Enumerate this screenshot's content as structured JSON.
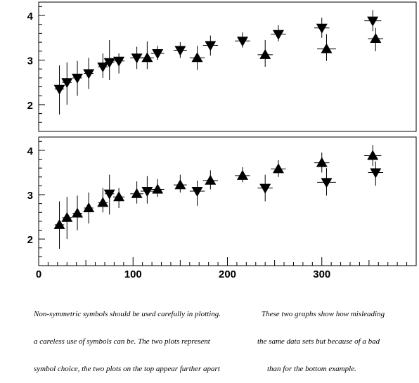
{
  "chart_data": [
    {
      "type": "scatter",
      "xlim": [
        0,
        400
      ],
      "ylim": [
        1.4,
        4.3
      ],
      "ytick_labels": [
        "2",
        "3",
        "4"
      ],
      "series": [
        {
          "marker": "triangle-down",
          "points": [
            {
              "x": 22,
              "y": 2.35,
              "xerr": 5,
              "ylo": 1.78,
              "yhi": 2.88
            },
            {
              "x": 30,
              "y": 2.5,
              "xerr": 5,
              "ylo": 2.0,
              "yhi": 2.95
            },
            {
              "x": 41,
              "y": 2.6,
              "xerr": 5,
              "ylo": 2.2,
              "yhi": 2.98
            },
            {
              "x": 53,
              "y": 2.7,
              "xerr": 5,
              "ylo": 2.35,
              "yhi": 3.05
            },
            {
              "x": 68,
              "y": 2.85,
              "xerr": 5,
              "ylo": 2.6,
              "yhi": 3.15
            },
            {
              "x": 75,
              "y": 2.95,
              "xerr": 5,
              "ylo": 2.55,
              "yhi": 3.45
            },
            {
              "x": 85,
              "y": 2.98,
              "xerr": 6,
              "ylo": 2.7,
              "yhi": 3.15
            },
            {
              "x": 104,
              "y": 3.05,
              "xerr": 7,
              "ylo": 2.8,
              "yhi": 3.3
            },
            {
              "x": 126,
              "y": 3.15,
              "xerr": 7,
              "ylo": 3.0,
              "yhi": 3.32
            },
            {
              "x": 150,
              "y": 3.22,
              "xerr": 7,
              "ylo": 3.05,
              "yhi": 3.4
            },
            {
              "x": 182,
              "y": 3.33,
              "xerr": 8,
              "ylo": 3.1,
              "yhi": 3.55
            },
            {
              "x": 216,
              "y": 3.43,
              "xerr": 8,
              "ylo": 3.28,
              "yhi": 3.62
            },
            {
              "x": 254,
              "y": 3.58,
              "xerr": 8,
              "ylo": 3.42,
              "yhi": 3.78
            },
            {
              "x": 300,
              "y": 3.72,
              "xerr": 8,
              "ylo": 3.5,
              "yhi": 3.95
            },
            {
              "x": 354,
              "y": 3.88,
              "xerr": 9,
              "ylo": 3.65,
              "yhi": 4.12
            }
          ]
        },
        {
          "marker": "triangle-up",
          "points": [
            {
              "x": 115,
              "y": 3.05,
              "xerr": 7,
              "ylo": 2.8,
              "yhi": 3.42
            },
            {
              "x": 168,
              "y": 3.05,
              "xerr": 8,
              "ylo": 2.78,
              "yhi": 3.32
            },
            {
              "x": 240,
              "y": 3.12,
              "xerr": 8,
              "ylo": 2.85,
              "yhi": 3.45
            },
            {
              "x": 305,
              "y": 3.25,
              "xerr": 10,
              "ylo": 2.98,
              "yhi": 3.58
            },
            {
              "x": 357,
              "y": 3.48,
              "xerr": 8,
              "ylo": 3.2,
              "yhi": 3.72
            }
          ]
        }
      ]
    },
    {
      "type": "scatter",
      "xlim": [
        0,
        400
      ],
      "ylim": [
        1.4,
        4.3
      ],
      "xlabel": "",
      "xtick_labels": [
        "0",
        "100",
        "200",
        "300"
      ],
      "ytick_labels": [
        "2",
        "3",
        "4"
      ],
      "series": [
        {
          "marker": "triangle-up",
          "points": [
            {
              "x": 22,
              "y": 2.32,
              "xerr": 5,
              "ylo": 1.78,
              "yhi": 2.85
            },
            {
              "x": 30,
              "y": 2.48,
              "xerr": 5,
              "ylo": 2.0,
              "yhi": 2.95
            },
            {
              "x": 41,
              "y": 2.58,
              "xerr": 5,
              "ylo": 2.2,
              "yhi": 2.98
            },
            {
              "x": 53,
              "y": 2.7,
              "xerr": 5,
              "ylo": 2.35,
              "yhi": 3.05
            },
            {
              "x": 68,
              "y": 2.82,
              "xerr": 5,
              "ylo": 2.6,
              "yhi": 3.15
            },
            {
              "x": 85,
              "y": 2.95,
              "xerr": 6,
              "ylo": 2.7,
              "yhi": 3.15
            },
            {
              "x": 104,
              "y": 3.02,
              "xerr": 7,
              "ylo": 2.8,
              "yhi": 3.3
            },
            {
              "x": 126,
              "y": 3.12,
              "xerr": 7,
              "ylo": 2.95,
              "yhi": 3.35
            },
            {
              "x": 150,
              "y": 3.22,
              "xerr": 7,
              "ylo": 3.05,
              "yhi": 3.45
            },
            {
              "x": 182,
              "y": 3.32,
              "xerr": 8,
              "ylo": 3.12,
              "yhi": 3.55
            },
            {
              "x": 216,
              "y": 3.43,
              "xerr": 8,
              "ylo": 3.28,
              "yhi": 3.62
            },
            {
              "x": 254,
              "y": 3.58,
              "xerr": 8,
              "ylo": 3.4,
              "yhi": 3.78
            },
            {
              "x": 300,
              "y": 3.72,
              "xerr": 8,
              "ylo": 3.5,
              "yhi": 3.95
            },
            {
              "x": 354,
              "y": 3.88,
              "xerr": 9,
              "ylo": 3.65,
              "yhi": 4.12
            }
          ]
        },
        {
          "marker": "triangle-down",
          "points": [
            {
              "x": 75,
              "y": 3.02,
              "xerr": 5,
              "ylo": 2.55,
              "yhi": 3.45
            },
            {
              "x": 115,
              "y": 3.08,
              "xerr": 7,
              "ylo": 2.8,
              "yhi": 3.42
            },
            {
              "x": 168,
              "y": 3.08,
              "xerr": 8,
              "ylo": 2.75,
              "yhi": 3.32
            },
            {
              "x": 240,
              "y": 3.15,
              "xerr": 8,
              "ylo": 2.85,
              "yhi": 3.45
            },
            {
              "x": 305,
              "y": 3.28,
              "xerr": 10,
              "ylo": 2.98,
              "yhi": 3.6
            },
            {
              "x": 357,
              "y": 3.5,
              "xerr": 8,
              "ylo": 3.2,
              "yhi": 3.75
            }
          ]
        }
      ]
    }
  ],
  "caption": {
    "left": [
      "Non-symmetric symbols should be used carefully in plotting.",
      "a careless use of symbols can be. The two plots represent",
      "symbol choice, the two plots on the top appear further apart"
    ],
    "right": [
      "These two graphs show how misleading",
      "the same data sets but because of a bad",
      "than for the bottom example."
    ]
  }
}
